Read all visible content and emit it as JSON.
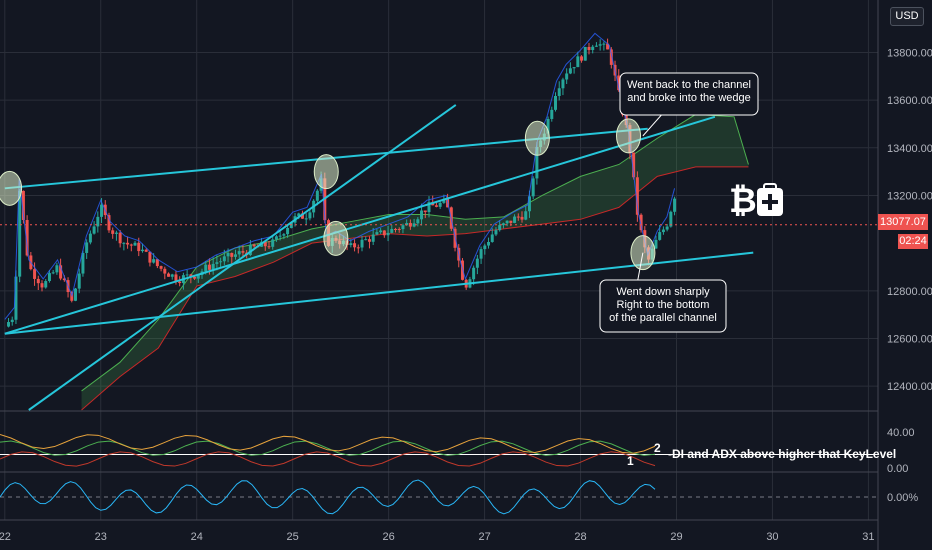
{
  "chart_data": {
    "type": "candlestick",
    "price_axis": {
      "ticks": [
        13800,
        13600,
        13400,
        13200,
        12800,
        12600,
        12400
      ],
      "tick_labels": [
        "13800.00",
        "13600.00",
        "13400.00",
        "13200.00",
        "12800.00",
        "12600.00",
        "12400.00"
      ],
      "ylim": [
        12300,
        14020
      ]
    },
    "time_axis": {
      "ticks": [
        "22",
        "23",
        "24",
        "25",
        "26",
        "27",
        "28",
        "29",
        "30",
        "31"
      ],
      "xlim": [
        21.95,
        31.1
      ]
    },
    "currency": "USD",
    "last_price_label": "13077.07",
    "last_price": 13077.07,
    "countdown": "02:24",
    "candles_close_path": [
      [
        22.0,
        12650
      ],
      [
        22.1,
        12700
      ],
      [
        22.15,
        13240
      ],
      [
        22.25,
        12900
      ],
      [
        22.4,
        12820
      ],
      [
        22.55,
        12900
      ],
      [
        22.7,
        12750
      ],
      [
        22.85,
        13000
      ],
      [
        23.0,
        13150
      ],
      [
        23.1,
        13060
      ],
      [
        23.25,
        13000
      ],
      [
        23.4,
        12980
      ],
      [
        23.6,
        12900
      ],
      [
        23.8,
        12850
      ],
      [
        24.0,
        12870
      ],
      [
        24.2,
        12920
      ],
      [
        24.4,
        12950
      ],
      [
        24.6,
        12980
      ],
      [
        24.8,
        13000
      ],
      [
        25.0,
        13100
      ],
      [
        25.15,
        13120
      ],
      [
        25.3,
        13260
      ],
      [
        25.35,
        13000
      ],
      [
        25.45,
        13020
      ],
      [
        25.6,
        12980
      ],
      [
        25.8,
        13020
      ],
      [
        26.0,
        13050
      ],
      [
        26.2,
        13080
      ],
      [
        26.4,
        13150
      ],
      [
        26.6,
        13170
      ],
      [
        26.75,
        12890
      ],
      [
        26.8,
        12820
      ],
      [
        26.95,
        12960
      ],
      [
        27.1,
        13050
      ],
      [
        27.3,
        13100
      ],
      [
        27.45,
        13130
      ],
      [
        27.55,
        13400
      ],
      [
        27.65,
        13500
      ],
      [
        27.75,
        13650
      ],
      [
        27.85,
        13720
      ],
      [
        28.0,
        13780
      ],
      [
        28.15,
        13850
      ],
      [
        28.3,
        13800
      ],
      [
        28.4,
        13620
      ],
      [
        28.5,
        13440
      ],
      [
        28.6,
        13100
      ],
      [
        28.7,
        12920
      ],
      [
        28.8,
        13020
      ],
      [
        28.9,
        13080
      ],
      [
        28.98,
        13200
      ]
    ],
    "ichimoku_cloud": {
      "span_a": [
        [
          22.8,
          12380
        ],
        [
          23.2,
          12500
        ],
        [
          23.6,
          12680
        ],
        [
          24.0,
          12900
        ],
        [
          24.4,
          12980
        ],
        [
          24.8,
          13010
        ],
        [
          25.2,
          13060
        ],
        [
          25.6,
          13090
        ],
        [
          26.0,
          13120
        ],
        [
          26.4,
          13120
        ],
        [
          26.8,
          13100
        ],
        [
          27.2,
          13110
        ],
        [
          27.6,
          13200
        ],
        [
          28.0,
          13280
        ],
        [
          28.4,
          13330
        ],
        [
          28.8,
          13440
        ],
        [
          29.2,
          13540
        ],
        [
          29.6,
          13530
        ],
        [
          29.75,
          13330
        ]
      ],
      "span_b": [
        [
          22.8,
          12300
        ],
        [
          23.2,
          12440
        ],
        [
          23.6,
          12560
        ],
        [
          24.0,
          12820
        ],
        [
          24.4,
          12860
        ],
        [
          24.8,
          12920
        ],
        [
          25.2,
          13000
        ],
        [
          25.6,
          13020
        ],
        [
          26.0,
          13040
        ],
        [
          26.4,
          13030
        ],
        [
          26.8,
          13040
        ],
        [
          27.2,
          13060
        ],
        [
          27.6,
          13080
        ],
        [
          28.0,
          13100
        ],
        [
          28.4,
          13150
        ],
        [
          28.8,
          13280
        ],
        [
          29.2,
          13320
        ],
        [
          29.6,
          13320
        ],
        [
          29.75,
          13320
        ]
      ]
    },
    "trend_lines": [
      {
        "x1": 22.0,
        "y1": 13230,
        "x2": 28.7,
        "y2": 13480
      },
      {
        "x1": 22.0,
        "y1": 12620,
        "x2": 29.4,
        "y2": 13530
      },
      {
        "x1": 22.0,
        "y1": 12620,
        "x2": 29.8,
        "y2": 12960
      },
      {
        "x1": 22.25,
        "y1": 12300,
        "x2": 26.7,
        "y2": 13580
      }
    ],
    "markers": [
      {
        "x": 22.05,
        "y": 13230
      },
      {
        "x": 25.35,
        "y": 13300
      },
      {
        "x": 25.45,
        "y": 13020
      },
      {
        "x": 27.55,
        "y": 13440
      },
      {
        "x": 28.5,
        "y": 13450
      },
      {
        "x": 28.65,
        "y": 12960
      }
    ],
    "callouts": [
      {
        "id": "callout-channel",
        "lines": [
          "Went back to the channel",
          "and broke into the wedge"
        ]
      },
      {
        "id": "callout-bottom",
        "lines": [
          "Went down sharply",
          "Right to the bottom",
          "of the parallel channel"
        ]
      }
    ],
    "dmi_panel": {
      "ticks": [
        "40.00",
        "0.00"
      ],
      "annotation": "-DI and ADX above higher that KeyLevel",
      "label_1": "1",
      "label_2": "2"
    },
    "oscillator_panel": {
      "ticks": [
        "0.00%"
      ]
    }
  }
}
